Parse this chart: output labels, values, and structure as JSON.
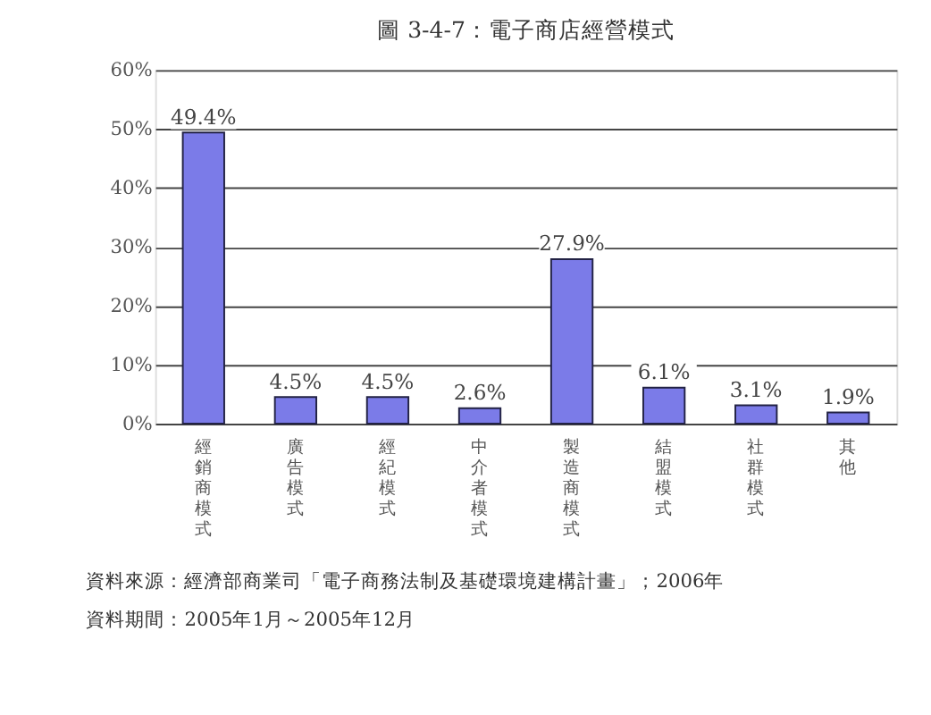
{
  "chart_data": {
    "type": "bar",
    "title": "圖 3-4-7：電子商店經營模式",
    "categories": [
      "經銷商模式",
      "廣告模式",
      "經紀模式",
      "中介者模式",
      "製造商模式",
      "結盟模式",
      "社群模式",
      "其他"
    ],
    "values": [
      49.4,
      4.5,
      4.5,
      2.6,
      27.9,
      6.1,
      3.1,
      1.9
    ],
    "value_labels": [
      "49.4%",
      "4.5%",
      "4.5%",
      "2.6%",
      "27.9%",
      "6.1%",
      "3.1%",
      "1.9%"
    ],
    "color": "#7b7be8",
    "ylim": [
      0,
      60
    ],
    "yticks": [
      {
        "value": 0,
        "label": "0%"
      },
      {
        "value": 10,
        "label": "10%"
      },
      {
        "value": 20,
        "label": "20%"
      },
      {
        "value": 30,
        "label": "30%"
      },
      {
        "value": 40,
        "label": "40%"
      },
      {
        "value": 50,
        "label": "50%"
      },
      {
        "value": 60,
        "label": "60%"
      }
    ],
    "grid": "y",
    "annotations": [
      "資料來源：經濟部商業司「電子商務法制及基礎環境建構計畫」；2006年",
      "資料期間：2005年1月～2005年12月"
    ]
  }
}
